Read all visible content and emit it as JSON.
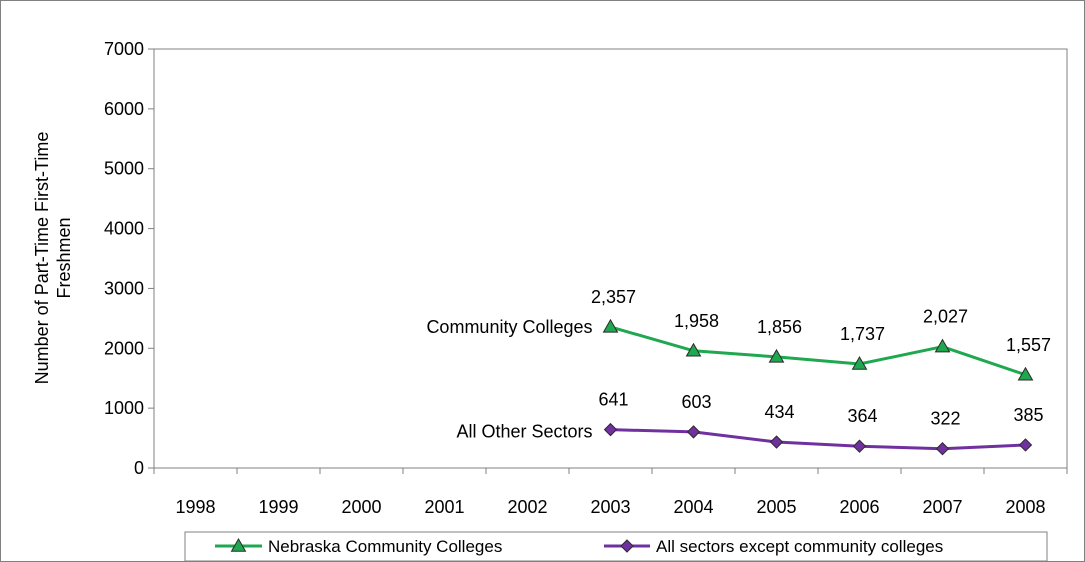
{
  "chart_data": {
    "type": "line",
    "title": "",
    "ylabel": "Number of Part-Time First-Time Freshmen",
    "xlabel": "",
    "ylim": [
      0,
      7000
    ],
    "yticks": [
      0,
      1000,
      2000,
      3000,
      4000,
      5000,
      6000,
      7000
    ],
    "categories": [
      "1998",
      "1999",
      "2000",
      "2001",
      "2002",
      "2003",
      "2004",
      "2005",
      "2006",
      "2007",
      "2008"
    ],
    "grid": false,
    "legend_position": "bottom",
    "series": [
      {
        "name": "Nebraska Community Colleges",
        "annotation": "Community Colleges",
        "color": "#1fa84f",
        "marker": "triangle",
        "values": [
          null,
          null,
          null,
          null,
          null,
          2357,
          1958,
          1856,
          1737,
          2027,
          1557
        ],
        "labels": [
          "",
          "",
          "",
          "",
          "",
          "2,357",
          "1,958",
          "1,856",
          "1,737",
          "2,027",
          "1,557"
        ]
      },
      {
        "name": "All sectors except community colleges",
        "annotation": "All Other Sectors",
        "color": "#7030a0",
        "marker": "diamond",
        "values": [
          null,
          null,
          null,
          null,
          null,
          641,
          603,
          434,
          364,
          322,
          385
        ],
        "labels": [
          "",
          "",
          "",
          "",
          "",
          "641",
          "603",
          "434",
          "364",
          "322",
          "385"
        ]
      }
    ]
  }
}
